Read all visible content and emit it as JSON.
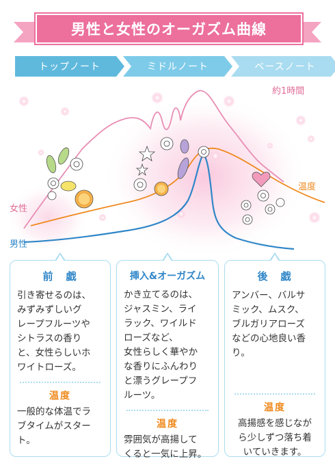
{
  "title": "男性と女性のオーガズム曲線",
  "notes": [
    "トップノート",
    "ミドルノート",
    "ベースノート"
  ],
  "graph": {
    "time_label": "約1時間",
    "female_label": "女性",
    "male_label": "男性",
    "temperature_label": "温度",
    "colors": {
      "female": "#e88db4",
      "male": "#2f86c8",
      "temperature": "#ee8a1f",
      "title": "#ec6f9c"
    }
  },
  "sections": [
    {
      "heading": "前　戯",
      "body": [
        "引き寄せるのは、",
        "みずみずしいグ",
        "レープフルーツや",
        "シトラスの香り",
        "と、女性らしいホ",
        "ワイトローズ。"
      ],
      "temp_heading": "温度",
      "temp_body": [
        "一般的な体温でラ",
        "ブタイムがスター",
        "ト。"
      ]
    },
    {
      "heading": "挿入&オーガズム",
      "body": [
        "かき立てるのは、",
        "ジャスミン、ライ",
        "ラック、ワイルド",
        "ローズなど、",
        "女性らしく華やか",
        "な香りにふんわり",
        "と漂うグレープフ",
        "ルーツ。"
      ],
      "temp_heading": "温度",
      "temp_body": [
        "雰囲気が高揚して",
        "くると一気に上昇。"
      ]
    },
    {
      "heading": "後　戯",
      "body": [
        "アンバー、バルサ",
        "ミック、ムスク、",
        "ブルガリアローズ",
        "などの心地良い香",
        "り。"
      ],
      "temp_heading": "温度",
      "temp_body": [
        "高揚感を感じなが",
        "ら少しずつ落ち着",
        "いていきます。"
      ]
    }
  ]
}
